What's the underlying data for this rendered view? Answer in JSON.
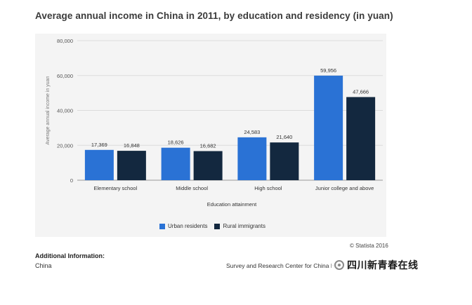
{
  "chart_data": {
    "type": "bar",
    "title": "Average annual income in China in 2011, by education and residency (in yuan)",
    "xlabel": "Education attainment",
    "ylabel": "Average annual income in yuan",
    "categories": [
      "Elementary school",
      "Middle school",
      "High school",
      "Junior college and above"
    ],
    "series": [
      {
        "name": "Urban residents",
        "color": "#2a72d5",
        "values": [
          17369,
          18626,
          24583,
          59956
        ],
        "labels": [
          "17,369",
          "18,626",
          "24,583",
          "59,956"
        ]
      },
      {
        "name": "Rural immigrants",
        "color": "#13283f",
        "values": [
          16848,
          16682,
          21640,
          47666
        ],
        "labels": [
          "16,848",
          "16,682",
          "21,640",
          "47,666"
        ]
      }
    ],
    "ylim": [
      0,
      80000
    ],
    "yticks": [
      0,
      20000,
      40000,
      60000,
      80000
    ],
    "ytick_labels": [
      "0",
      "20,000",
      "40,000",
      "60,000",
      "80,000"
    ],
    "grid": true,
    "legend_position": "bottom-center"
  },
  "additional_info": {
    "heading": "Additional Information:",
    "value": "China"
  },
  "copyright": "© Statista 2016",
  "source_text": "Survey and Research Center for China Ho",
  "watermark": {
    "text": "四川新青春在线",
    "icon": "wechat-logo-icon"
  }
}
